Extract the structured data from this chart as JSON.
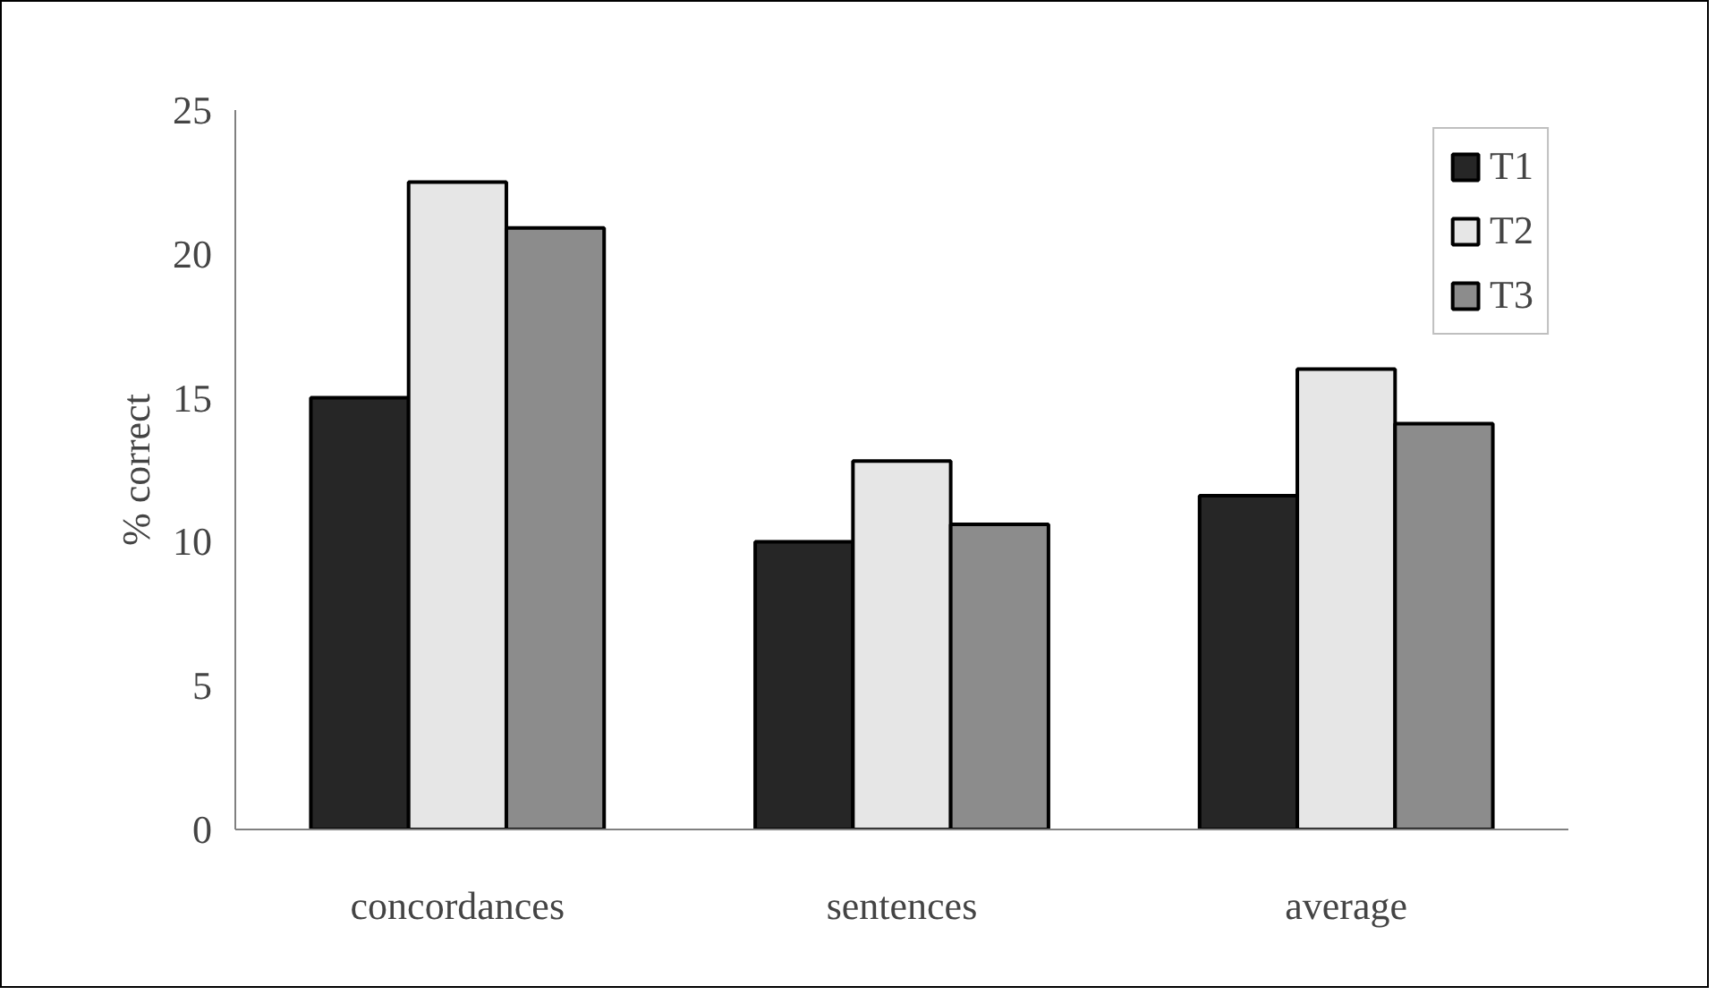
{
  "chart_data": {
    "type": "bar",
    "ylabel": "% correct",
    "categories": [
      "concordances",
      "sentences",
      "average"
    ],
    "series": [
      {
        "name": "T1",
        "color": "#262626",
        "values": [
          15.0,
          10.0,
          11.6
        ]
      },
      {
        "name": "T2",
        "color": "#e6e6e6",
        "values": [
          22.5,
          12.8,
          16.0
        ]
      },
      {
        "name": "T3",
        "color": "#8c8c8c",
        "values": [
          20.9,
          10.6,
          14.1
        ]
      }
    ],
    "ylim": [
      0,
      25
    ],
    "yticks": [
      0,
      5,
      10,
      15,
      20,
      25
    ],
    "grid": false,
    "legend": "top right"
  }
}
